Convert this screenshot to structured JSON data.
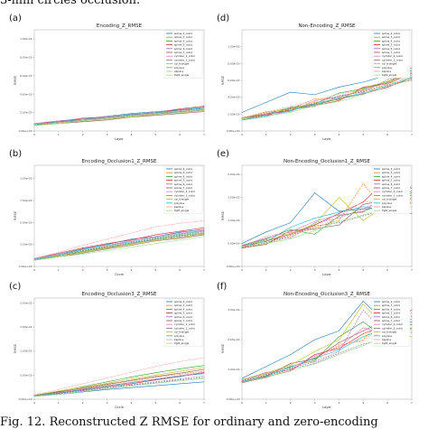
{
  "caption_top": "3-mm circles occlusion.",
  "caption_bottom": "Fig. 12.    Reconstructed Z RMSE for ordinary and zero-encoding",
  "colors": [
    "#1f77b4",
    "#ff7f0e",
    "#2ca02c",
    "#d62728",
    "#9467bd",
    "#8c564b",
    "#e377c2",
    "#7f7f7f",
    "#bcbd22",
    "#17becf",
    "#ff9896",
    "#98df8a"
  ],
  "legend": [
    "spline_2_cubic",
    "spline_3_cubic",
    "spline_4_cubic",
    "spline_5_cubic",
    "spline_6_cubic",
    "spline_7_cubic",
    "cylinder_2_cubic",
    "cylinder_3_cubic",
    "cyl_triangle",
    "polyline",
    "bspline",
    "tight_single"
  ],
  "chart_data": [
    {
      "letter": "(a)",
      "type": "line",
      "title": "Encoding_Z_RMSE",
      "xlabel": "Layer",
      "ylabel": "RMSE",
      "x": [
        0,
        1,
        2,
        3,
        4,
        5,
        6,
        7
      ],
      "ylim": [
        0.0,
        0.011
      ],
      "yticks": [
        "0.00e+00",
        "2.00e-03",
        "4.00e-03",
        "6.00e-03",
        "8.00e-03",
        "1.00e-02"
      ],
      "ytick_vals": [
        0,
        0.002,
        0.004,
        0.006,
        0.008,
        0.01
      ],
      "series": [
        {
          "values": [
            0.0008,
            0.0011,
            0.0013,
            0.0016,
            0.0019,
            0.0021,
            0.0023,
            0.0026
          ]
        },
        {
          "values": [
            0.0007,
            0.0009,
            0.0012,
            0.0015,
            0.0017,
            0.002,
            0.0022,
            0.0024
          ]
        },
        {
          "values": [
            0.0006,
            0.001,
            0.0011,
            0.0014,
            0.0016,
            0.0019,
            0.0021,
            0.0023
          ]
        },
        {
          "values": [
            0.0008,
            0.001,
            0.0014,
            0.0015,
            0.0018,
            0.002,
            0.0024,
            0.0027
          ]
        },
        {
          "values": [
            0.0007,
            0.0009,
            0.0011,
            0.0013,
            0.0016,
            0.0018,
            0.0021,
            0.0022
          ]
        },
        {
          "values": [
            0.0006,
            0.0008,
            0.001,
            0.0012,
            0.0015,
            0.0017,
            0.0019,
            0.0021
          ]
        },
        {
          "values": [
            0.0008,
            0.0011,
            0.0012,
            0.0016,
            0.0017,
            0.0021,
            0.0022,
            0.0025
          ]
        },
        {
          "values": [
            0.0007,
            0.001,
            0.0013,
            0.0014,
            0.0017,
            0.0019,
            0.0023,
            0.0024
          ]
        },
        {
          "values": [
            0.0006,
            0.0009,
            0.0011,
            0.0013,
            0.0015,
            0.0018,
            0.002,
            0.0022
          ]
        },
        {
          "values": [
            0.0007,
            0.001,
            0.0012,
            0.0015,
            0.0018,
            0.002,
            0.0022,
            0.0025
          ]
        },
        {
          "values": [
            0.0008,
            0.0009,
            0.0012,
            0.0014,
            0.0016,
            0.0019,
            0.0022,
            0.0023
          ]
        },
        {
          "values": [
            0.0006,
            0.0008,
            0.0011,
            0.0013,
            0.0016,
            0.0018,
            0.002,
            0.0024
          ]
        }
      ]
    },
    {
      "letter": "(d)",
      "type": "line",
      "title": "Non-Encoding_Z_RMSE",
      "xlabel": "Layer",
      "ylabel": "RMSE",
      "x": [
        0,
        1,
        2,
        3,
        4,
        5,
        6,
        7
      ],
      "ylim": [
        0.0,
        0.012
      ],
      "yticks": [
        "0.00e+00",
        "2.00e-03",
        "4.00e-03",
        "6.00e-03",
        "8.00e-03",
        "1.00e-02"
      ],
      "ytick_vals": [
        0,
        0.002,
        0.004,
        0.006,
        0.008,
        0.01
      ],
      "series": [
        {
          "values": [
            0.0022,
            0.0034,
            0.0046,
            0.0043,
            0.0052,
            0.0058,
            0.0066,
            0.0075
          ]
        },
        {
          "values": [
            0.0015,
            0.0022,
            0.0026,
            0.0038,
            0.004,
            0.0048,
            0.0055,
            0.006
          ]
        },
        {
          "values": [
            0.0014,
            0.002,
            0.0028,
            0.0032,
            0.0045,
            0.005,
            0.0058,
            0.0072
          ]
        },
        {
          "values": [
            0.0016,
            0.0019,
            0.0025,
            0.003,
            0.0036,
            0.0052,
            0.0056,
            0.0068
          ]
        },
        {
          "values": [
            0.0015,
            0.0021,
            0.0024,
            0.0033,
            0.0042,
            0.0046,
            0.0061,
            0.0065
          ]
        },
        {
          "values": [
            0.0013,
            0.0018,
            0.0027,
            0.0031,
            0.0038,
            0.0044,
            0.0052,
            0.0063
          ]
        },
        {
          "values": [
            0.0016,
            0.002,
            0.0023,
            0.0036,
            0.004,
            0.0049,
            0.0057,
            0.007
          ]
        },
        {
          "values": [
            0.0014,
            0.0019,
            0.0026,
            0.0029,
            0.0041,
            0.0047,
            0.0053,
            0.0061
          ]
        },
        {
          "values": [
            0.0015,
            0.0023,
            0.0025,
            0.0034,
            0.0037,
            0.0051,
            0.0059,
            0.0066
          ]
        },
        {
          "values": [
            0.0013,
            0.0017,
            0.0024,
            0.0032,
            0.0039,
            0.0045,
            0.0054,
            0.0064
          ]
        },
        {
          "values": [
            0.0016,
            0.0022,
            0.0029,
            0.0035,
            0.0044,
            0.0048,
            0.005,
            0.0069
          ]
        },
        {
          "values": [
            0.0014,
            0.0018,
            0.0022,
            0.003,
            0.0035,
            0.0043,
            0.0056,
            0.0062
          ]
        }
      ]
    },
    {
      "letter": "(b)",
      "type": "line",
      "title": "Encoding_Occlusion1_Z_RMSE",
      "xlabel": "Circle",
      "ylabel": "RMSE",
      "x": [
        0,
        1,
        2,
        3,
        4,
        5,
        6,
        7
      ],
      "ylim": [
        0.0,
        0.0115
      ],
      "yticks": [
        "0.00e+00",
        "2.50e-03",
        "5.00e-03",
        "7.50e-03",
        "1.00e-02"
      ],
      "ytick_vals": [
        0,
        0.0025,
        0.005,
        0.0075,
        0.01
      ],
      "series": [
        {
          "values": [
            0.0009,
            0.0014,
            0.002,
            0.0025,
            0.0031,
            0.0034,
            0.0039,
            0.0042
          ]
        },
        {
          "values": [
            0.0008,
            0.0013,
            0.0018,
            0.0023,
            0.0028,
            0.0033,
            0.0037,
            0.004
          ]
        },
        {
          "values": [
            0.0007,
            0.0012,
            0.0017,
            0.0022,
            0.0026,
            0.0031,
            0.0035,
            0.0038
          ]
        },
        {
          "values": [
            0.0009,
            0.0015,
            0.0021,
            0.0026,
            0.003,
            0.0036,
            0.004,
            0.0044
          ]
        },
        {
          "values": [
            0.0008,
            0.0012,
            0.0016,
            0.0021,
            0.0027,
            0.003,
            0.0034,
            0.0037
          ]
        },
        {
          "values": [
            0.0007,
            0.0011,
            0.0015,
            0.002,
            0.0024,
            0.0029,
            0.0032,
            0.0036
          ]
        },
        {
          "values": [
            0.0009,
            0.0014,
            0.0019,
            0.0024,
            0.0029,
            0.0034,
            0.0038,
            0.0041
          ]
        },
        {
          "values": [
            0.0008,
            0.0013,
            0.0018,
            0.0022,
            0.0027,
            0.0032,
            0.0036,
            0.0039
          ]
        },
        {
          "values": [
            0.0007,
            0.0012,
            0.0016,
            0.0021,
            0.0025,
            0.003,
            0.0033,
            0.0037
          ]
        },
        {
          "values": [
            0.0008,
            0.0013,
            0.0019,
            0.0024,
            0.0028,
            0.0033,
            0.0037,
            0.004
          ]
        },
        {
          "values": [
            0.0009,
            0.0016,
            0.0024,
            0.0031,
            0.0038,
            0.0045,
            0.0049,
            0.0052
          ]
        },
        {
          "values": [
            0.0007,
            0.0011,
            0.0014,
            0.0018,
            0.0022,
            0.0026,
            0.003,
            0.0034
          ]
        }
      ]
    },
    {
      "letter": "(e)",
      "type": "line",
      "title": "Non-Encoding_Occlusion1_Z_RMSE",
      "xlabel": "Layer",
      "ylabel": "RMSE",
      "x": [
        0,
        1,
        2,
        3,
        4,
        5,
        6,
        7
      ],
      "ylim": [
        0.0,
        0.022
      ],
      "yticks": [
        "0.00e+00",
        "5.00e-03",
        "1.00e-02",
        "1.50e-02",
        "2.00e-02"
      ],
      "ytick_vals": [
        0,
        0.005,
        0.01,
        0.015,
        0.02
      ],
      "series": [
        {
          "values": [
            0.005,
            0.0075,
            0.0095,
            0.016,
            0.012,
            0.0125,
            0.0128,
            0.0115
          ]
        },
        {
          "values": [
            0.004,
            0.005,
            0.0065,
            0.0085,
            0.01,
            0.018,
            0.0115,
            0.013
          ]
        },
        {
          "values": [
            0.0045,
            0.006,
            0.008,
            0.007,
            0.011,
            0.012,
            0.014,
            0.016
          ]
        },
        {
          "values": [
            0.0042,
            0.0055,
            0.007,
            0.009,
            0.0115,
            0.014,
            0.019,
            0.017
          ]
        },
        {
          "values": [
            0.0044,
            0.0058,
            0.0062,
            0.0095,
            0.0105,
            0.0125,
            0.015,
            0.0175
          ]
        },
        {
          "values": [
            0.004,
            0.0048,
            0.0078,
            0.0082,
            0.009,
            0.0135,
            0.0145,
            0.0155
          ]
        },
        {
          "values": [
            0.0046,
            0.0062,
            0.0075,
            0.0098,
            0.0112,
            0.0118,
            0.016,
            0.0145
          ]
        },
        {
          "values": [
            0.0041,
            0.0052,
            0.0068,
            0.0088,
            0.0095,
            0.011,
            0.0125,
            0.0138
          ]
        },
        {
          "values": [
            0.0043,
            0.0057,
            0.0072,
            0.0092,
            0.015,
            0.01,
            0.0135,
            0.015
          ]
        },
        {
          "values": [
            0.0045,
            0.0054,
            0.0085,
            0.0105,
            0.0118,
            0.013,
            0.0122,
            0.0165
          ]
        },
        {
          "values": [
            0.0042,
            0.0066,
            0.0074,
            0.008,
            0.0108,
            0.0142,
            0.0138,
            0.0148
          ]
        },
        {
          "values": [
            0.0044,
            0.005,
            0.006,
            0.0078,
            0.0098,
            0.0112,
            0.0128,
            0.014
          ]
        }
      ]
    },
    {
      "letter": "(c)",
      "type": "line",
      "title": "Encoding_Occlusion3_Z_RMSE",
      "xlabel": "Circle",
      "ylabel": "RMSE",
      "x": [
        0,
        1,
        2,
        3,
        4,
        5,
        6,
        7
      ],
      "ylim": [
        0.0,
        0.021
      ],
      "yticks": [
        "0.00e+00",
        "5.00e-03",
        "1.00e-02",
        "1.50e-02",
        "2.00e-02"
      ],
      "ytick_vals": [
        0,
        0.005,
        0.01,
        0.015,
        0.02
      ],
      "series": [
        {
          "values": [
            0.0006,
            0.001,
            0.0015,
            0.002,
            0.0024,
            0.0028,
            0.0032,
            0.0036
          ]
        },
        {
          "values": [
            0.0007,
            0.0014,
            0.0022,
            0.003,
            0.0038,
            0.0046,
            0.0052,
            0.0058
          ]
        },
        {
          "values": [
            0.0008,
            0.0016,
            0.0026,
            0.0036,
            0.0046,
            0.0055,
            0.0063,
            0.007
          ]
        },
        {
          "values": [
            0.0007,
            0.0013,
            0.0019,
            0.0026,
            0.0032,
            0.004,
            0.0047,
            0.0055
          ]
        },
        {
          "values": [
            0.0006,
            0.0012,
            0.0018,
            0.0024,
            0.003,
            0.0036,
            0.0042,
            0.0048
          ]
        },
        {
          "values": [
            0.0008,
            0.0015,
            0.0023,
            0.0031,
            0.0039,
            0.0047,
            0.0054,
            0.0062
          ]
        },
        {
          "values": [
            0.0007,
            0.0014,
            0.0021,
            0.0028,
            0.0035,
            0.0042,
            0.0049,
            0.0056
          ]
        },
        {
          "values": [
            0.0006,
            0.0011,
            0.0017,
            0.0023,
            0.0029,
            0.0034,
            0.004,
            0.0045
          ]
        },
        {
          "values": [
            0.0008,
            0.0017,
            0.0025,
            0.0033,
            0.0042,
            0.005,
            0.0058,
            0.0066
          ]
        },
        {
          "values": [
            0.0007,
            0.0012,
            0.002,
            0.0027,
            0.0034,
            0.0041,
            0.0048,
            0.0053
          ]
        },
        {
          "values": [
            0.0009,
            0.002,
            0.0032,
            0.0044,
            0.0056,
            0.0068,
            0.0078,
            0.0086
          ]
        },
        {
          "values": [
            0.0006,
            0.001,
            0.0016,
            0.0022,
            0.0027,
            0.0033,
            0.0038,
            0.0043
          ]
        }
      ]
    },
    {
      "letter": "(f)",
      "type": "line",
      "title": "Non-Encoding_Occlusion3_Z_RMSE",
      "xlabel": "Layer",
      "ylabel": "RMSE",
      "x": [
        0,
        1,
        2,
        3,
        4,
        5,
        6,
        7
      ],
      "ylim": [
        0.0,
        0.034
      ],
      "yticks": [
        "0.00e+00",
        "1.00e-02",
        "2.00e-02",
        "3.00e-02"
      ],
      "ytick_vals": [
        0,
        0.01,
        0.02,
        0.03
      ],
      "series": [
        {
          "values": [
            0.007,
            0.011,
            0.015,
            0.02,
            0.023,
            0.033,
            0.025,
            0.026
          ]
        },
        {
          "values": [
            0.006,
            0.008,
            0.01,
            0.014,
            0.018,
            0.02,
            0.029,
            0.023
          ]
        },
        {
          "values": [
            0.0065,
            0.0085,
            0.011,
            0.013,
            0.021,
            0.026,
            0.02,
            0.024
          ]
        },
        {
          "values": [
            0.0055,
            0.0075,
            0.0095,
            0.015,
            0.017,
            0.022,
            0.025,
            0.03
          ]
        },
        {
          "values": [
            0.0062,
            0.0082,
            0.0105,
            0.0125,
            0.016,
            0.03,
            0.021,
            0.028
          ]
        },
        {
          "values": [
            0.0058,
            0.0078,
            0.012,
            0.0135,
            0.019,
            0.023,
            0.027,
            0.025
          ]
        },
        {
          "values": [
            0.0064,
            0.009,
            0.0098,
            0.0145,
            0.0175,
            0.024,
            0.022,
            0.027
          ]
        },
        {
          "values": [
            0.0056,
            0.0072,
            0.0102,
            0.012,
            0.0155,
            0.0185,
            0.0205,
            0.0225
          ]
        },
        {
          "values": [
            0.0066,
            0.0088,
            0.0115,
            0.016,
            0.02,
            0.032,
            0.023,
            0.021
          ]
        },
        {
          "values": [
            0.006,
            0.0076,
            0.0108,
            0.0138,
            0.0165,
            0.021,
            0.024,
            0.026
          ]
        },
        {
          "values": [
            0.0063,
            0.0086,
            0.0112,
            0.0128,
            0.0185,
            0.0195,
            0.026,
            0.029
          ]
        },
        {
          "values": [
            0.0057,
            0.0074,
            0.0096,
            0.0118,
            0.015,
            0.018,
            0.0215,
            0.0235
          ]
        }
      ]
    }
  ]
}
